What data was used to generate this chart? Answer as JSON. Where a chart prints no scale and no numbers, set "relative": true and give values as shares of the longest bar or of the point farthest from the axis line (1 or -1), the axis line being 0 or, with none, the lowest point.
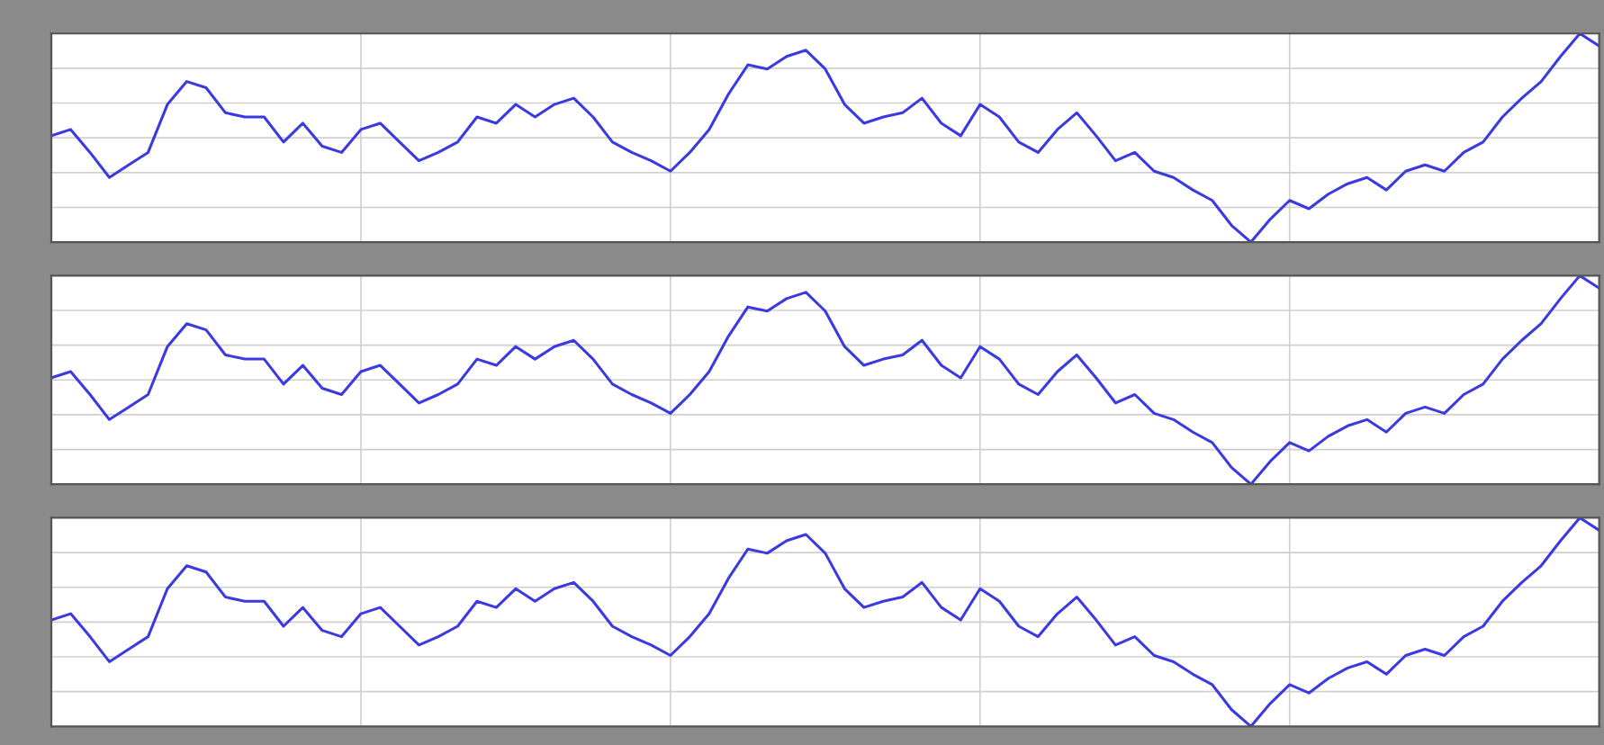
{
  "chart_data": [
    {
      "type": "line",
      "relative": true,
      "grid": true,
      "tick_labels": false,
      "categories": [
        null,
        null,
        null,
        null,
        null,
        null,
        null,
        null,
        null,
        null,
        null,
        null,
        null,
        null,
        null,
        null,
        null,
        null,
        null,
        null,
        null,
        null,
        null,
        null,
        null,
        null,
        null,
        null,
        null,
        null,
        null,
        null,
        null,
        null,
        null,
        null,
        null,
        null,
        null,
        null,
        null,
        null,
        null,
        null,
        null,
        null,
        null,
        null,
        null,
        null,
        null,
        null,
        null,
        null,
        null,
        null,
        null,
        null,
        null,
        null,
        null,
        null,
        null,
        null,
        null,
        null,
        null,
        null,
        null,
        null,
        null,
        null,
        null,
        null,
        null,
        null,
        null,
        null,
        null,
        null,
        null
      ],
      "series": [
        {
          "color": "#3a3ae0",
          "values": [
            0.51,
            0.54,
            0.43,
            0.31,
            0.37,
            0.43,
            0.66,
            0.77,
            0.74,
            0.62,
            0.6,
            0.6,
            0.48,
            0.57,
            0.46,
            0.43,
            0.54,
            0.57,
            0.48,
            0.39,
            0.43,
            0.48,
            0.6,
            0.57,
            0.66,
            0.6,
            0.66,
            0.69,
            0.6,
            0.48,
            0.43,
            0.39,
            0.34,
            0.43,
            0.54,
            0.71,
            0.85,
            0.83,
            0.89,
            0.92,
            0.83,
            0.66,
            0.57,
            0.6,
            0.62,
            0.69,
            0.57,
            0.51,
            0.66,
            0.6,
            0.48,
            0.43,
            0.54,
            0.62,
            0.51,
            0.39,
            0.43,
            0.34,
            0.31,
            0.25,
            0.2,
            0.08,
            0,
            0.11,
            0.2,
            0.16,
            0.23,
            0.28,
            0.31,
            0.25,
            0.34,
            0.37,
            0.34,
            0.43,
            0.48,
            0.6,
            0.69,
            0.77,
            0.89,
            1,
            0.94
          ]
        }
      ]
    },
    {
      "type": "line",
      "relative": true,
      "grid": true,
      "tick_labels": false,
      "categories": [
        null,
        null,
        null,
        null,
        null,
        null,
        null,
        null,
        null,
        null,
        null,
        null,
        null,
        null,
        null,
        null,
        null,
        null,
        null,
        null,
        null,
        null,
        null,
        null,
        null,
        null,
        null,
        null,
        null,
        null,
        null,
        null,
        null,
        null,
        null,
        null,
        null,
        null,
        null,
        null,
        null,
        null,
        null,
        null,
        null,
        null,
        null,
        null,
        null,
        null,
        null,
        null,
        null,
        null,
        null,
        null,
        null,
        null,
        null,
        null,
        null,
        null,
        null,
        null,
        null,
        null,
        null,
        null,
        null,
        null,
        null,
        null,
        null,
        null,
        null,
        null,
        null,
        null,
        null,
        null,
        null
      ],
      "series": [
        {
          "color": "#3a3ae0",
          "values": [
            0.51,
            0.54,
            0.43,
            0.31,
            0.37,
            0.43,
            0.66,
            0.77,
            0.74,
            0.62,
            0.6,
            0.6,
            0.48,
            0.57,
            0.46,
            0.43,
            0.54,
            0.57,
            0.48,
            0.39,
            0.43,
            0.48,
            0.6,
            0.57,
            0.66,
            0.6,
            0.66,
            0.69,
            0.6,
            0.48,
            0.43,
            0.39,
            0.34,
            0.43,
            0.54,
            0.71,
            0.85,
            0.83,
            0.89,
            0.92,
            0.83,
            0.66,
            0.57,
            0.6,
            0.62,
            0.69,
            0.57,
            0.51,
            0.66,
            0.6,
            0.48,
            0.43,
            0.54,
            0.62,
            0.51,
            0.39,
            0.43,
            0.34,
            0.31,
            0.25,
            0.2,
            0.08,
            0,
            0.11,
            0.2,
            0.16,
            0.23,
            0.28,
            0.31,
            0.25,
            0.34,
            0.37,
            0.34,
            0.43,
            0.48,
            0.6,
            0.69,
            0.77,
            0.89,
            1,
            0.94
          ]
        }
      ]
    },
    {
      "type": "line",
      "relative": true,
      "grid": true,
      "tick_labels": false,
      "categories": [
        null,
        null,
        null,
        null,
        null,
        null,
        null,
        null,
        null,
        null,
        null,
        null,
        null,
        null,
        null,
        null,
        null,
        null,
        null,
        null,
        null,
        null,
        null,
        null,
        null,
        null,
        null,
        null,
        null,
        null,
        null,
        null,
        null,
        null,
        null,
        null,
        null,
        null,
        null,
        null,
        null,
        null,
        null,
        null,
        null,
        null,
        null,
        null,
        null,
        null,
        null,
        null,
        null,
        null,
        null,
        null,
        null,
        null,
        null,
        null,
        null,
        null,
        null,
        null,
        null,
        null,
        null,
        null,
        null,
        null,
        null,
        null,
        null,
        null,
        null,
        null,
        null,
        null,
        null,
        null,
        null
      ],
      "series": [
        {
          "color": "#3a3ae0",
          "values": [
            0.51,
            0.54,
            0.43,
            0.31,
            0.37,
            0.43,
            0.66,
            0.77,
            0.74,
            0.62,
            0.6,
            0.6,
            0.48,
            0.57,
            0.46,
            0.43,
            0.54,
            0.57,
            0.48,
            0.39,
            0.43,
            0.48,
            0.6,
            0.57,
            0.66,
            0.6,
            0.66,
            0.69,
            0.6,
            0.48,
            0.43,
            0.39,
            0.34,
            0.43,
            0.54,
            0.71,
            0.85,
            0.83,
            0.89,
            0.92,
            0.83,
            0.66,
            0.57,
            0.6,
            0.62,
            0.69,
            0.57,
            0.51,
            0.66,
            0.6,
            0.48,
            0.43,
            0.54,
            0.62,
            0.51,
            0.39,
            0.43,
            0.34,
            0.31,
            0.25,
            0.2,
            0.08,
            0,
            0.11,
            0.2,
            0.16,
            0.23,
            0.28,
            0.31,
            0.25,
            0.34,
            0.37,
            0.34,
            0.43,
            0.48,
            0.6,
            0.69,
            0.77,
            0.89,
            1,
            0.94
          ]
        }
      ]
    }
  ]
}
